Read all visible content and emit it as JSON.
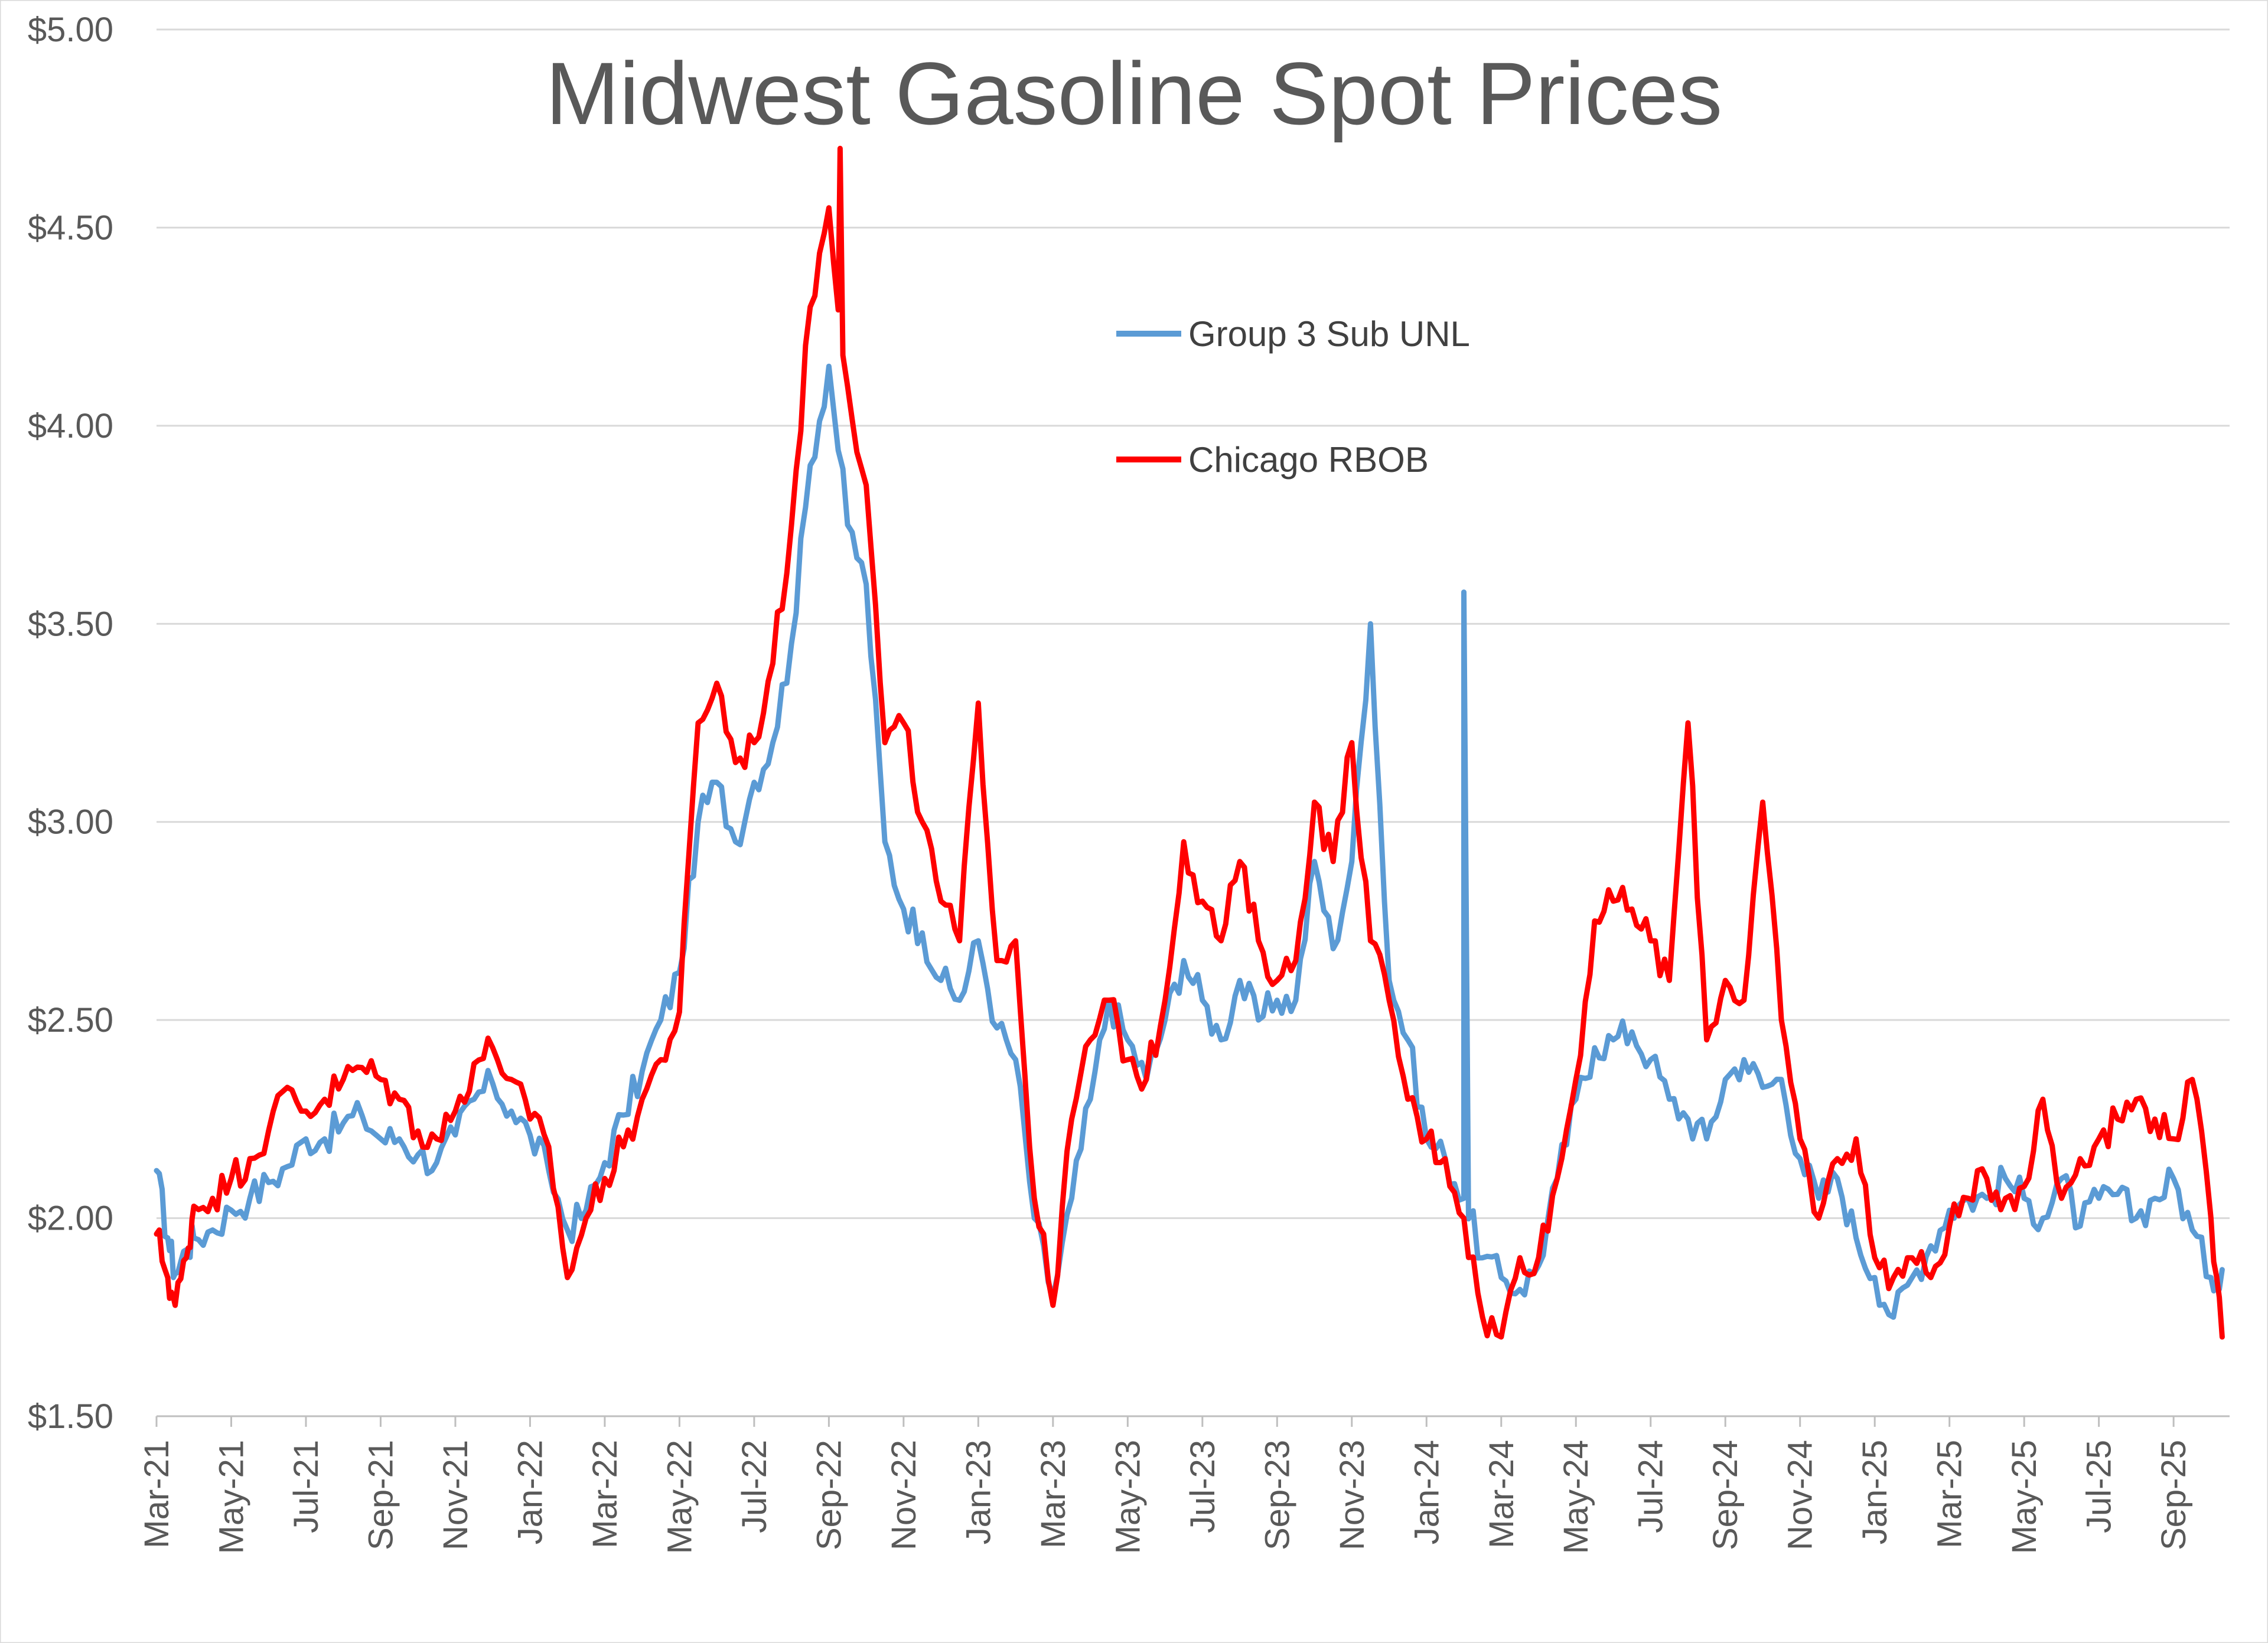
{
  "chart_data": {
    "type": "line",
    "title": "Midwest Gasoline Spot Prices",
    "xlabel": "",
    "ylabel": "",
    "ylim": [
      1.5,
      5.0
    ],
    "y_ticks": [
      1.5,
      2.0,
      2.5,
      3.0,
      3.5,
      4.0,
      4.5,
      5.0
    ],
    "y_tick_labels": [
      "$1.50",
      "$2.00",
      "$2.50",
      "$3.00",
      "$3.50",
      "$4.00",
      "$4.50",
      "$5.00"
    ],
    "x_tick_labels": [
      "Mar-21",
      "May-21",
      "Jul-21",
      "Sep-21",
      "Nov-21",
      "Jan-22",
      "Mar-22",
      "May-22",
      "Jul-22",
      "Sep-22",
      "Nov-22",
      "Jan-23",
      "Mar-23",
      "May-23",
      "Jul-23",
      "Sep-23",
      "Nov-23",
      "Jan-24",
      "Mar-24",
      "May-24",
      "Jul-24",
      "Sep-24",
      "Nov-24",
      "Jan-25",
      "Mar-25",
      "May-25",
      "Jul-25",
      "Sep-25"
    ],
    "x_index_range": [
      0,
      55.5
    ],
    "grid": true,
    "legend_position": "top-center",
    "series": [
      {
        "name": "Group 3 Sub UNL",
        "color": "#5b9bd5",
        "x": [
          0,
          0.3,
          0.5,
          0.8,
          1,
          1.5,
          2,
          2.5,
          3,
          3.5,
          4,
          4.5,
          5,
          5.5,
          6,
          6.5,
          7,
          7.5,
          8,
          8.5,
          9,
          9.5,
          10,
          10.5,
          11,
          11.5,
          12,
          12.5,
          13,
          13.5,
          14,
          14.5,
          15,
          15.5,
          16,
          16.5,
          17,
          17.5,
          18,
          18.5,
          19,
          19.5,
          20,
          20.5,
          21,
          21.5,
          22,
          22.5,
          23,
          23.5,
          24,
          24.5,
          25,
          25.5,
          26,
          26.5,
          27,
          27.5,
          28,
          28.5,
          29,
          29.5,
          30,
          30.5,
          31,
          31.5,
          32,
          32.5,
          33,
          33.5,
          34,
          34.5,
          35,
          35.5,
          36,
          36.5,
          37,
          37.5,
          38,
          38.5,
          39,
          39.5,
          40,
          40.5,
          41,
          41.5,
          42,
          42.5,
          43,
          43.5,
          44,
          44.5,
          45,
          45.5,
          46,
          46.5,
          47,
          47.5,
          48,
          48.5,
          49,
          49.5,
          50,
          50.5,
          51,
          51.5,
          52,
          52.5,
          53,
          53.5,
          54,
          54.5,
          55,
          55.3
        ],
        "values": [
          2.12,
          1.95,
          1.86,
          1.92,
          1.95,
          1.97,
          2.02,
          2.05,
          2.09,
          2.13,
          2.2,
          2.2,
          2.24,
          2.26,
          2.2,
          2.2,
          2.16,
          2.14,
          2.21,
          2.3,
          2.34,
          2.27,
          2.21,
          2.12,
          1.97,
          2.02,
          2.14,
          2.26,
          2.37,
          2.5,
          2.62,
          3.0,
          3.1,
          2.95,
          3.1,
          3.2,
          3.45,
          3.9,
          4.15,
          3.75,
          3.6,
          2.95,
          2.78,
          2.72,
          2.6,
          2.55,
          2.7,
          2.48,
          2.4,
          2.0,
          1.8,
          2.05,
          2.3,
          2.55,
          2.45,
          2.35,
          2.5,
          2.65,
          2.55,
          2.45,
          2.6,
          2.5,
          2.55,
          2.55,
          2.9,
          2.68,
          2.9,
          3.5,
          2.6,
          2.45,
          2.2,
          2.15,
          2.05,
          1.9,
          1.85,
          1.82,
          1.88,
          2.1,
          2.3,
          2.43,
          2.45,
          2.47,
          2.4,
          2.3,
          2.25,
          2.2,
          2.35,
          2.4,
          2.33,
          2.35,
          2.15,
          2.05,
          2.1,
          1.95,
          1.85,
          1.75,
          1.85,
          1.93,
          2.02,
          2.05,
          2.05,
          2.1,
          2.05,
          2.0,
          2.1,
          1.98,
          2.05,
          2.06,
          2.0,
          2.05,
          2.1,
          1.97,
          1.85,
          1.87
        ],
        "peak": {
          "x": 35,
          "value": 3.58
        }
      },
      {
        "name": "Chicago RBOB",
        "color": "#ff0000",
        "x": [
          0,
          0.3,
          0.5,
          0.8,
          1,
          1.5,
          2,
          2.5,
          3,
          3.5,
          4,
          4.5,
          5,
          5.5,
          6,
          6.5,
          7,
          7.5,
          8,
          8.5,
          9,
          9.5,
          10,
          10.5,
          11,
          11.5,
          12,
          12.5,
          13,
          13.5,
          14,
          14.5,
          15,
          15.5,
          16,
          16.5,
          17,
          17.5,
          18,
          18.5,
          19,
          19.5,
          20,
          20.5,
          21,
          21.5,
          22,
          22.5,
          23,
          23.5,
          24,
          24.5,
          25,
          25.5,
          26,
          26.5,
          27,
          27.5,
          28,
          28.5,
          29,
          29.5,
          30,
          30.5,
          31,
          31.5,
          32,
          32.5,
          33,
          33.5,
          34,
          34.5,
          35,
          35.5,
          36,
          36.5,
          37,
          37.5,
          38,
          38.5,
          39,
          39.5,
          40,
          40.5,
          41,
          41.5,
          42,
          42.5,
          43,
          43.5,
          44,
          44.5,
          45,
          45.5,
          46,
          46.5,
          47,
          47.5,
          48,
          48.5,
          49,
          49.5,
          50,
          50.5,
          51,
          51.5,
          52,
          52.5,
          53,
          53.5,
          54,
          54.5,
          55,
          55.3
        ],
        "values": [
          1.96,
          1.85,
          1.78,
          1.9,
          2.03,
          2.05,
          2.1,
          2.15,
          2.22,
          2.33,
          2.27,
          2.3,
          2.35,
          2.38,
          2.35,
          2.3,
          2.22,
          2.2,
          2.27,
          2.39,
          2.43,
          2.35,
          2.25,
          2.18,
          1.85,
          2.0,
          2.1,
          2.18,
          2.3,
          2.4,
          2.52,
          3.25,
          3.35,
          3.15,
          3.2,
          3.4,
          3.75,
          4.3,
          4.55,
          4.1,
          3.85,
          3.2,
          3.25,
          3.0,
          2.8,
          2.7,
          3.3,
          2.65,
          2.7,
          2.05,
          1.78,
          2.25,
          2.45,
          2.55,
          2.4,
          2.35,
          2.55,
          2.95,
          2.8,
          2.7,
          2.9,
          2.7,
          2.6,
          2.65,
          3.05,
          2.9,
          3.2,
          2.7,
          2.55,
          2.3,
          2.2,
          2.15,
          2.0,
          1.75,
          1.7,
          1.9,
          1.9,
          2.1,
          2.35,
          2.75,
          2.8,
          2.78,
          2.7,
          2.6,
          3.25,
          2.45,
          2.6,
          2.55,
          3.05,
          2.5,
          2.2,
          2.0,
          2.15,
          2.2,
          1.9,
          1.85,
          1.9,
          1.85,
          1.98,
          2.05,
          2.1,
          2.05,
          2.08,
          2.3,
          2.05,
          2.15,
          2.2,
          2.25,
          2.3,
          2.25,
          2.2,
          2.35,
          2.0,
          1.7
        ],
        "peak": {
          "x": 18.3,
          "value": 4.7
        }
      }
    ]
  }
}
